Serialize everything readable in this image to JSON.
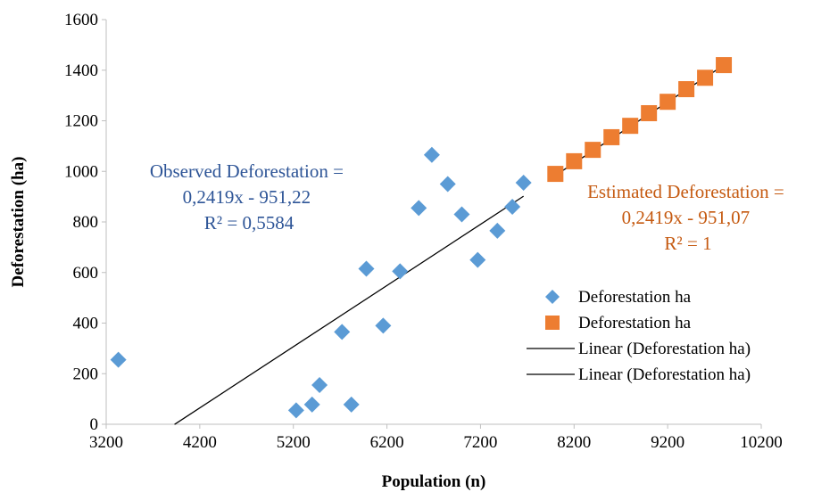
{
  "chart_data": {
    "type": "scatter",
    "xlabel": "Population (n)",
    "ylabel": "Deforestation (ha)",
    "xlim": [
      3200,
      10200
    ],
    "ylim": [
      0,
      1600
    ],
    "x_ticks": [
      3200,
      4200,
      5200,
      6200,
      7200,
      8200,
      9200,
      10200
    ],
    "y_ticks": [
      0,
      200,
      400,
      600,
      800,
      1000,
      1200,
      1400,
      1600
    ],
    "grid": false,
    "legend_position": "right",
    "series": [
      {
        "name": "Deforestation ha",
        "marker": "diamond",
        "color": "#5b9bd5",
        "points": [
          [
            3330,
            255
          ],
          [
            5230,
            55
          ],
          [
            5400,
            78
          ],
          [
            5480,
            155
          ],
          [
            5720,
            365
          ],
          [
            5820,
            78
          ],
          [
            5980,
            615
          ],
          [
            6160,
            390
          ],
          [
            6340,
            605
          ],
          [
            6540,
            855
          ],
          [
            6680,
            1065
          ],
          [
            6850,
            950
          ],
          [
            7000,
            830
          ],
          [
            7170,
            650
          ],
          [
            7380,
            765
          ],
          [
            7540,
            860
          ],
          [
            7660,
            955
          ]
        ]
      },
      {
        "name": "Deforestation ha",
        "marker": "square",
        "color": "#ed7d31",
        "points": [
          [
            8000,
            990
          ],
          [
            8200,
            1040
          ],
          [
            8400,
            1085
          ],
          [
            8600,
            1135
          ],
          [
            8800,
            1180
          ],
          [
            9000,
            1230
          ],
          [
            9200,
            1275
          ],
          [
            9400,
            1325
          ],
          [
            9600,
            1370
          ],
          [
            9800,
            1420
          ]
        ]
      }
    ],
    "trendlines": [
      {
        "name": "Linear (Deforestation ha)",
        "slope": 0.2419,
        "intercept": -951.22,
        "x_range": [
          3930,
          7660
        ],
        "color": "#000000"
      },
      {
        "name": "Linear (Deforestation ha)",
        "slope": 0.2419,
        "intercept": -951.07,
        "x_range": [
          8000,
          9800
        ],
        "color": "#000000"
      }
    ],
    "annotations": [
      {
        "lines": [
          "Observed Deforestation =",
          "0,2419x - 951,22",
          "R² = 0,5584"
        ],
        "color": "#2e5597"
      },
      {
        "lines": [
          "Estimated Deforestation =",
          "0,2419x - 951,07",
          "R² = 1"
        ],
        "color": "#c55a11"
      }
    ],
    "legend": [
      {
        "label": "Deforestation ha",
        "symbol": "diamond",
        "color": "#5b9bd5"
      },
      {
        "label": "Deforestation ha",
        "symbol": "square",
        "color": "#ed7d31"
      },
      {
        "label": "Linear (Deforestation ha)",
        "symbol": "line",
        "color": "#000000"
      },
      {
        "label": "Linear (Deforestation ha)",
        "symbol": "line",
        "color": "#000000"
      }
    ]
  }
}
